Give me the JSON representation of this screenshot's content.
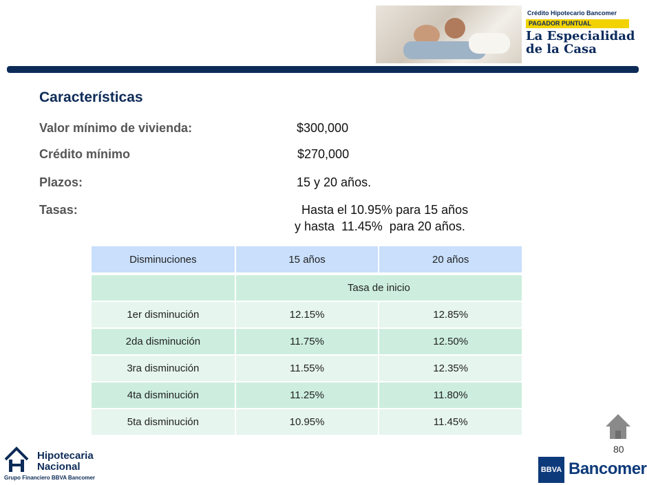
{
  "banner": {
    "line1": "Crédito Hipotecario Bancomer",
    "line2": "PAGADOR PUNTUAL",
    "line3": "La Especialidad",
    "line4": "de la Casa"
  },
  "title": "Características",
  "rows": [
    {
      "label": "Valor mínimo de vivienda:",
      "value": "$300,000"
    },
    {
      "label": "Crédito mínimo",
      "value": "$270,000"
    },
    {
      "label": "Plazos:",
      "value": "15 y 20 años."
    },
    {
      "label": "Tasas:",
      "value": "Hasta el 10.95% para 15 años",
      "value2": "y hasta  11.45%  para 20 años."
    }
  ],
  "table": {
    "headers": [
      "Disminuciones",
      "15 años",
      "20 años"
    ],
    "subheader": "Tasa de inicio",
    "rows": [
      [
        "1er disminución",
        "12.15%",
        "12.85%"
      ],
      [
        "2da disminución",
        "11.75%",
        "12.50%"
      ],
      [
        "3ra disminución",
        "11.55%",
        "12.35%"
      ],
      [
        "4ta disminución",
        "11.25%",
        "11.80%"
      ],
      [
        "5ta disminución",
        "10.95%",
        "11.45%"
      ]
    ]
  },
  "page_number": "80",
  "footer_left": {
    "line1": "Hipotecaria",
    "line2": "Nacional",
    "line3": "Grupo Financiero BBVA Bancomer"
  },
  "footer_right": {
    "box": "BBVA",
    "text": "Bancomer"
  },
  "colors": {
    "navy": "#0d2b57",
    "header_blue": "#c9dffb",
    "row_light": "#e6f5ee",
    "row_dark": "#cdeede"
  }
}
